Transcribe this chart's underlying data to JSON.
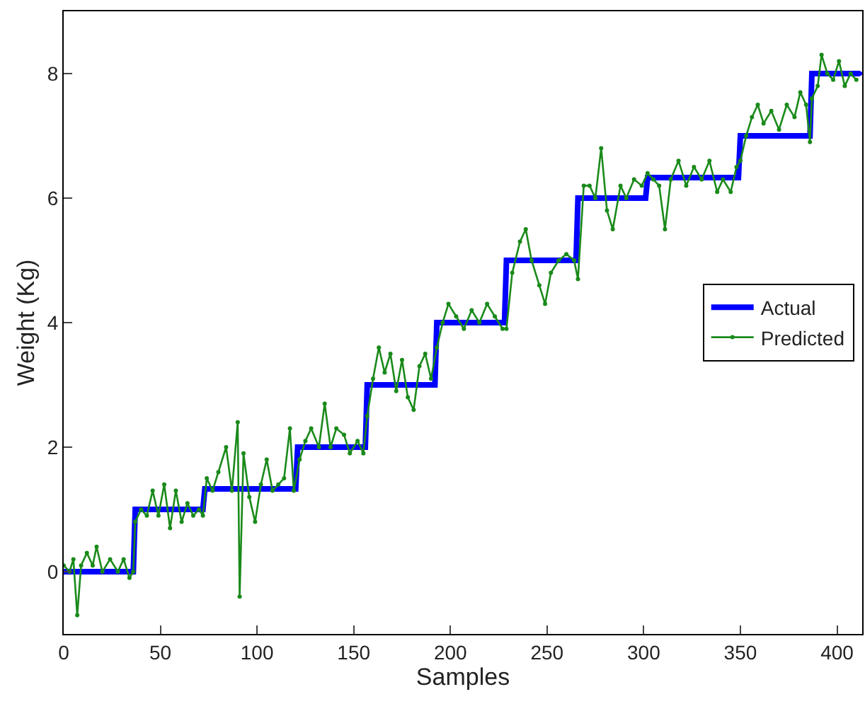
{
  "chart_data": {
    "type": "line",
    "xlabel": "Samples",
    "ylabel": "Weight (Kg)",
    "xlim": [
      0,
      413
    ],
    "ylim": [
      -1,
      9
    ],
    "xticks": [
      0,
      50,
      100,
      150,
      200,
      250,
      300,
      350,
      400
    ],
    "yticks": [
      0,
      2,
      4,
      6,
      8
    ],
    "legend": "right",
    "marker": "circle",
    "line_style": "solid",
    "series": [
      {
        "name": "Actual",
        "color": "#0000ff",
        "x": [
          0,
          36,
          37,
          72,
          73,
          120,
          121,
          156,
          157,
          192,
          193,
          228,
          229,
          265,
          266,
          301,
          302,
          349,
          350,
          386,
          387,
          412
        ],
        "values": [
          0,
          0,
          1,
          1,
          1.33,
          1.33,
          2,
          2,
          3,
          3,
          4,
          4,
          5,
          5,
          6,
          6,
          6.33,
          6.33,
          7,
          7,
          8,
          8
        ]
      },
      {
        "name": "Predicted",
        "color": "#1a8a1a",
        "x": [
          0,
          3,
          5,
          7,
          9,
          12,
          15,
          17,
          20,
          24,
          28,
          31,
          34,
          36,
          37,
          40,
          43,
          46,
          49,
          52,
          55,
          58,
          61,
          64,
          67,
          70,
          72,
          74,
          77,
          80,
          84,
          87,
          90,
          91,
          93,
          96,
          99,
          102,
          105,
          108,
          111,
          114,
          117,
          119,
          122,
          125,
          128,
          132,
          135,
          138,
          141,
          145,
          148,
          152,
          155,
          157,
          160,
          163,
          166,
          169,
          172,
          175,
          178,
          181,
          184,
          187,
          190,
          193,
          196,
          199,
          203,
          207,
          211,
          215,
          219,
          223,
          227,
          229,
          232,
          236,
          239,
          242,
          246,
          249,
          252,
          256,
          260,
          264,
          266,
          269,
          272,
          275,
          278,
          281,
          284,
          288,
          291,
          295,
          299,
          302,
          305,
          308,
          311,
          314,
          318,
          322,
          326,
          330,
          334,
          338,
          341,
          345,
          348,
          350,
          353,
          356,
          359,
          362,
          366,
          370,
          374,
          378,
          381,
          384,
          386,
          387,
          390,
          392,
          395,
          398,
          401,
          404,
          407,
          410
        ],
        "values": [
          0.1,
          0.0,
          0.2,
          -0.7,
          0.1,
          0.3,
          0.1,
          0.4,
          0.0,
          0.2,
          0.0,
          0.2,
          -0.1,
          0.0,
          0.8,
          1.0,
          0.9,
          1.3,
          0.9,
          1.4,
          0.7,
          1.3,
          0.8,
          1.1,
          0.9,
          1.0,
          0.9,
          1.5,
          1.3,
          1.6,
          2.0,
          1.3,
          2.4,
          -0.4,
          1.9,
          1.2,
          0.8,
          1.4,
          1.8,
          1.3,
          1.4,
          1.5,
          2.3,
          1.3,
          1.8,
          2.1,
          2.3,
          2.0,
          2.7,
          2.0,
          2.3,
          2.2,
          1.9,
          2.1,
          1.9,
          2.5,
          3.1,
          3.6,
          3.2,
          3.5,
          2.9,
          3.4,
          2.8,
          2.6,
          3.3,
          3.5,
          3.1,
          3.6,
          4.0,
          4.3,
          4.1,
          3.9,
          4.2,
          4.0,
          4.3,
          4.1,
          3.9,
          3.9,
          4.8,
          5.3,
          5.5,
          5.0,
          4.6,
          4.3,
          4.8,
          5.0,
          5.1,
          5.0,
          4.7,
          6.2,
          6.2,
          6.0,
          6.8,
          5.8,
          5.5,
          6.2,
          6.0,
          6.3,
          6.2,
          6.4,
          6.3,
          6.2,
          5.5,
          6.3,
          6.6,
          6.2,
          6.5,
          6.3,
          6.6,
          6.1,
          6.3,
          6.1,
          6.5,
          6.6,
          7.0,
          7.3,
          7.5,
          7.2,
          7.4,
          7.1,
          7.5,
          7.3,
          7.7,
          7.5,
          6.9,
          7.6,
          7.8,
          8.3,
          8.0,
          7.9,
          8.2,
          7.8,
          8.0,
          7.9
        ]
      }
    ]
  }
}
